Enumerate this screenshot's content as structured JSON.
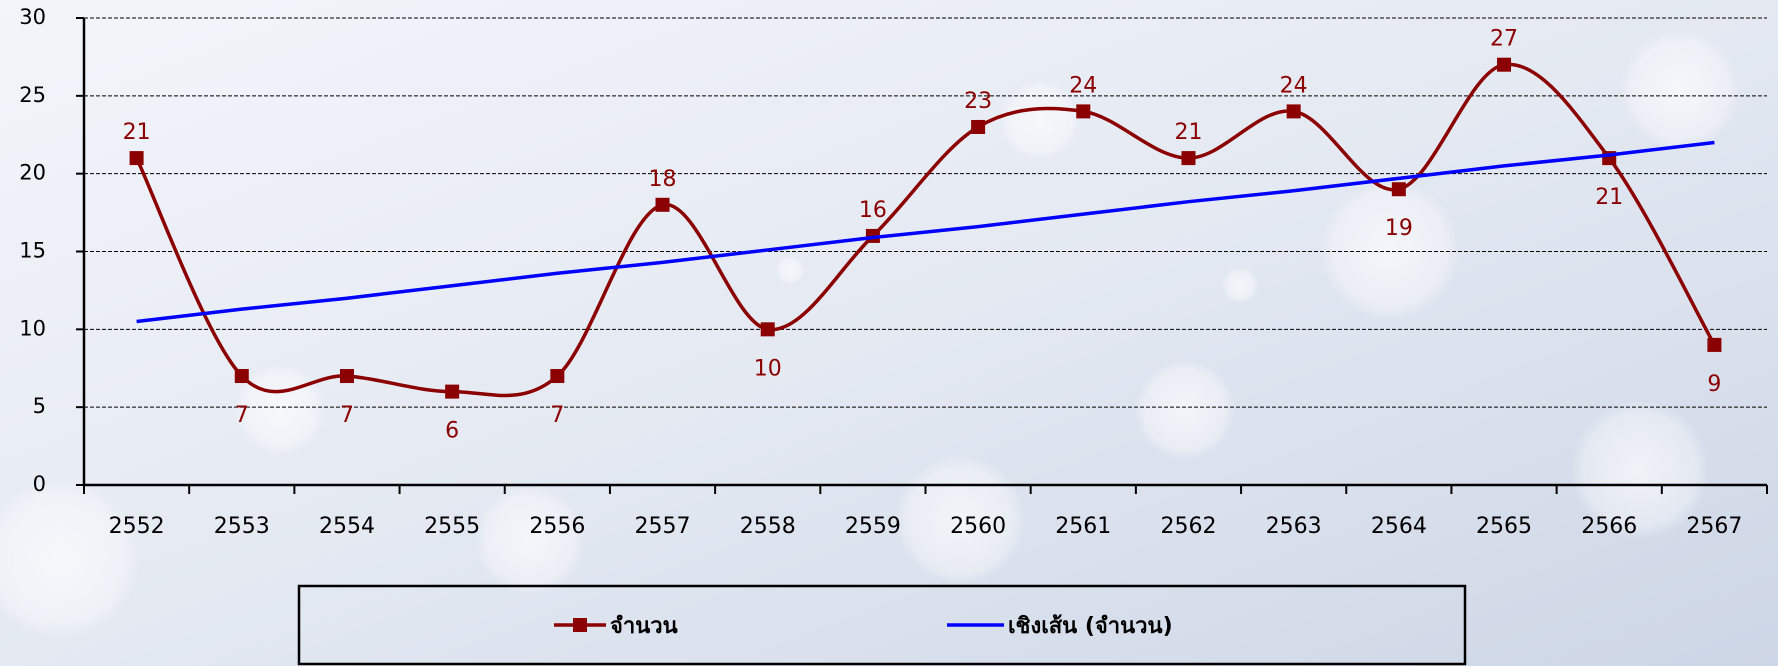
{
  "chart_data": {
    "type": "line",
    "categories": [
      "2552",
      "2553",
      "2554",
      "2555",
      "2556",
      "2557",
      "2558",
      "2559",
      "2560",
      "2561",
      "2562",
      "2563",
      "2564",
      "2565",
      "2566",
      "2567"
    ],
    "series": [
      {
        "name": "จำนวน",
        "color": "#8b0000",
        "marker": "square",
        "smooth": true,
        "values": [
          21,
          7,
          7,
          6,
          7,
          18,
          10,
          16,
          23,
          24,
          21,
          24,
          19,
          27,
          21,
          9
        ]
      },
      {
        "name": "เชิงเส้น (จำนวน)",
        "color": "#0000ff",
        "values": [
          10.5,
          11.3,
          12.0,
          12.8,
          13.6,
          14.3,
          15.1,
          15.9,
          16.6,
          17.4,
          18.2,
          18.9,
          19.7,
          20.5,
          21.2,
          22.0
        ]
      }
    ],
    "ylim": [
      0,
      30
    ],
    "yticks": [
      0,
      5,
      10,
      15,
      20,
      25,
      30
    ],
    "grid": true,
    "legend": "bottom"
  }
}
